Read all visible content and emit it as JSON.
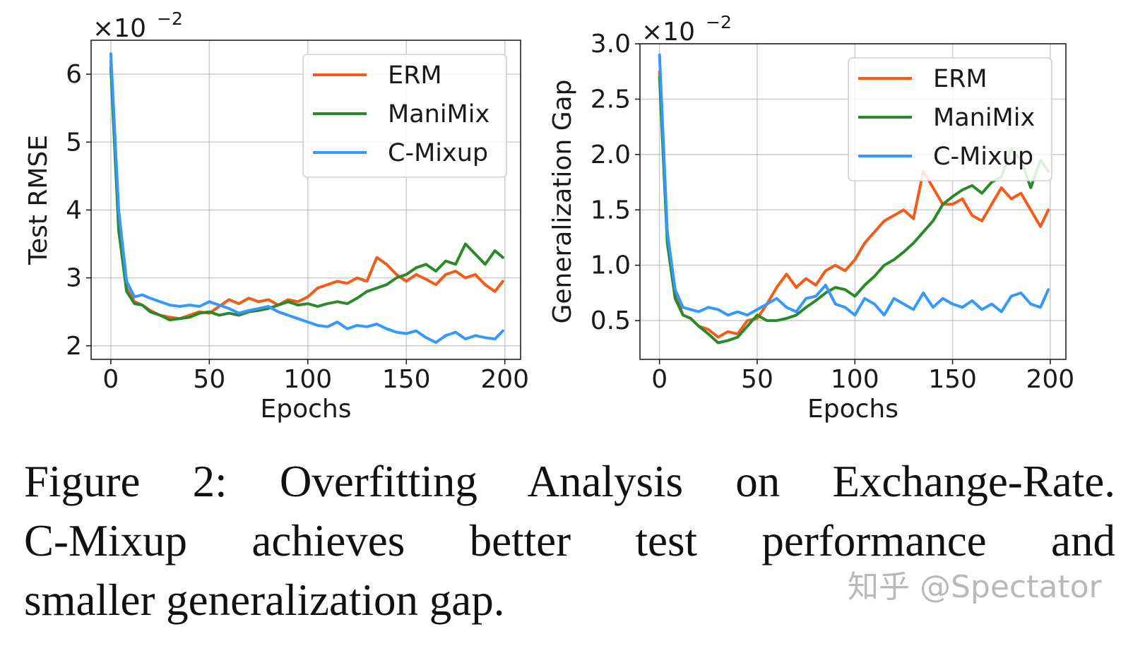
{
  "colors": {
    "ERM": "#f25c19",
    "ManiMix": "#2a8a2a",
    "C-Mixup": "#3399ff"
  },
  "chart_data": [
    {
      "type": "line",
      "ylabel": "Test RMSE",
      "xlabel": "Epochs",
      "scale_label": "×10",
      "scale_exp": "−2",
      "xlim": [
        -10,
        208
      ],
      "ylim": [
        1.8,
        6.5
      ],
      "xticks": [
        0,
        50,
        100,
        150,
        200
      ],
      "yticks": [
        2,
        3,
        4,
        5,
        6
      ],
      "grid": true,
      "legend_position": "top-right",
      "x": [
        0,
        4,
        8,
        12,
        16,
        20,
        25,
        30,
        35,
        40,
        45,
        50,
        55,
        60,
        65,
        70,
        75,
        80,
        85,
        90,
        95,
        100,
        105,
        110,
        115,
        120,
        125,
        130,
        135,
        140,
        145,
        150,
        155,
        160,
        165,
        170,
        175,
        180,
        185,
        190,
        195,
        199
      ],
      "series": [
        {
          "name": "ERM",
          "values": [
            6.2,
            3.9,
            2.85,
            2.65,
            2.6,
            2.52,
            2.45,
            2.42,
            2.4,
            2.45,
            2.5,
            2.48,
            2.58,
            2.68,
            2.62,
            2.7,
            2.65,
            2.68,
            2.6,
            2.68,
            2.65,
            2.72,
            2.85,
            2.9,
            2.95,
            2.92,
            3.0,
            2.95,
            3.3,
            3.2,
            3.05,
            2.95,
            3.05,
            2.98,
            2.9,
            3.05,
            3.1,
            3.0,
            3.05,
            2.9,
            2.8,
            2.95
          ]
        },
        {
          "name": "ManiMix",
          "values": [
            6.1,
            3.7,
            2.8,
            2.62,
            2.6,
            2.5,
            2.45,
            2.38,
            2.4,
            2.42,
            2.48,
            2.5,
            2.45,
            2.48,
            2.45,
            2.5,
            2.52,
            2.55,
            2.6,
            2.65,
            2.6,
            2.62,
            2.58,
            2.62,
            2.65,
            2.62,
            2.7,
            2.8,
            2.85,
            2.9,
            3.0,
            3.05,
            3.15,
            3.2,
            3.1,
            3.25,
            3.2,
            3.5,
            3.35,
            3.2,
            3.4,
            3.3
          ]
        },
        {
          "name": "C-Mixup",
          "values": [
            6.3,
            4.0,
            2.95,
            2.72,
            2.75,
            2.7,
            2.65,
            2.6,
            2.58,
            2.6,
            2.58,
            2.65,
            2.6,
            2.55,
            2.48,
            2.52,
            2.55,
            2.58,
            2.5,
            2.45,
            2.4,
            2.35,
            2.3,
            2.28,
            2.35,
            2.25,
            2.3,
            2.28,
            2.32,
            2.25,
            2.2,
            2.18,
            2.22,
            2.12,
            2.05,
            2.15,
            2.2,
            2.1,
            2.15,
            2.12,
            2.1,
            2.22
          ]
        }
      ]
    },
    {
      "type": "line",
      "ylabel": "Generalization Gap",
      "xlabel": "Epochs",
      "scale_label": "×10",
      "scale_exp": "−2",
      "xlim": [
        -10,
        208
      ],
      "ylim": [
        0.15,
        3.0
      ],
      "xticks": [
        0,
        50,
        100,
        150,
        200
      ],
      "yticks": [
        0.5,
        1.0,
        1.5,
        2.0,
        2.5,
        3.0
      ],
      "ytick_labels": [
        "0.5",
        "1.0",
        "1.5",
        "2.0",
        "2.5",
        "3.0"
      ],
      "grid": true,
      "legend_position": "top-right",
      "x": [
        0,
        4,
        8,
        12,
        16,
        20,
        25,
        30,
        35,
        40,
        45,
        50,
        55,
        60,
        65,
        70,
        75,
        80,
        85,
        90,
        95,
        100,
        105,
        110,
        115,
        120,
        125,
        130,
        135,
        140,
        145,
        150,
        155,
        160,
        165,
        170,
        175,
        180,
        185,
        190,
        195,
        199
      ],
      "series": [
        {
          "name": "ERM",
          "values": [
            2.75,
            1.3,
            0.75,
            0.55,
            0.52,
            0.45,
            0.42,
            0.35,
            0.4,
            0.38,
            0.5,
            0.52,
            0.65,
            0.8,
            0.92,
            0.8,
            0.88,
            0.82,
            0.95,
            1.0,
            0.95,
            1.05,
            1.2,
            1.3,
            1.4,
            1.45,
            1.5,
            1.42,
            1.85,
            1.7,
            1.55,
            1.55,
            1.6,
            1.45,
            1.4,
            1.55,
            1.7,
            1.6,
            1.65,
            1.5,
            1.35,
            1.5
          ]
        },
        {
          "name": "ManiMix",
          "values": [
            2.7,
            1.2,
            0.7,
            0.55,
            0.52,
            0.45,
            0.38,
            0.3,
            0.32,
            0.35,
            0.45,
            0.55,
            0.5,
            0.5,
            0.52,
            0.55,
            0.62,
            0.68,
            0.75,
            0.8,
            0.78,
            0.72,
            0.82,
            0.9,
            1.0,
            1.05,
            1.12,
            1.2,
            1.3,
            1.4,
            1.55,
            1.62,
            1.68,
            1.72,
            1.65,
            1.75,
            1.8,
            2.05,
            1.95,
            1.7,
            1.95,
            1.85
          ]
        },
        {
          "name": "C-Mixup",
          "values": [
            2.9,
            1.3,
            0.78,
            0.62,
            0.6,
            0.58,
            0.62,
            0.6,
            0.55,
            0.58,
            0.55,
            0.6,
            0.65,
            0.7,
            0.62,
            0.58,
            0.7,
            0.72,
            0.82,
            0.65,
            0.62,
            0.55,
            0.7,
            0.65,
            0.55,
            0.7,
            0.65,
            0.6,
            0.75,
            0.62,
            0.7,
            0.65,
            0.62,
            0.68,
            0.6,
            0.65,
            0.58,
            0.72,
            0.75,
            0.65,
            0.62,
            0.78
          ]
        }
      ]
    }
  ],
  "caption": {
    "line1": "Figure 2: Overfitting Analysis on Exchange-Rate.",
    "line2": "C-Mixup achieves better test performance and",
    "line3": "smaller generalization gap."
  },
  "watermark": "知乎 @Spectator"
}
